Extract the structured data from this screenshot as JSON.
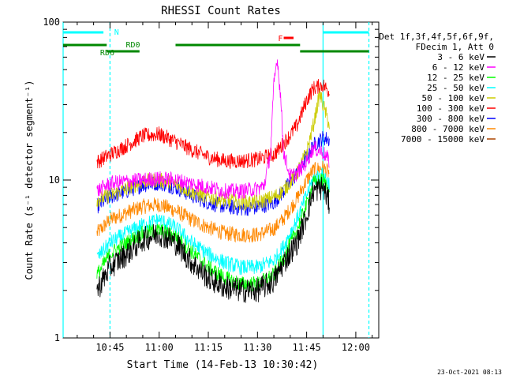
{
  "chart_data": {
    "type": "line",
    "title": "RHESSI Count Rates",
    "xlabel": "Start Time (14-Feb-13 10:30:42)",
    "ylabel": "Count Rate (s⁻¹ detector segment⁻¹)",
    "x_unit": "time (HH:MM, 14-Feb-2013)",
    "xlim": [
      "10:30:42",
      "12:07:00"
    ],
    "ylim": [
      1,
      100
    ],
    "yscale": "log",
    "x_ticks": [
      "10:45",
      "11:00",
      "11:15",
      "11:30",
      "11:45",
      "12:00"
    ],
    "y_ticks": [
      "1",
      "10",
      "100"
    ],
    "grid": false,
    "legend_position": "right",
    "legend_header": [
      "Det 1f,3f,4f,5f,6f,9f,",
      "FDecim 1, Att 0"
    ],
    "footer_timestamp": "23-Oct-2021 08:13",
    "series": [
      {
        "name": "3 - 6 keV",
        "color": "#000000",
        "x": [
          "10:41",
          "10:45",
          "10:50",
          "10:55",
          "11:00",
          "11:05",
          "11:10",
          "11:15",
          "11:20",
          "11:25",
          "11:30",
          "11:35",
          "11:38",
          "11:42",
          "11:45",
          "11:47",
          "11:50",
          "11:52"
        ],
        "y": [
          2.0,
          2.8,
          3.4,
          4.2,
          4.6,
          4.0,
          3.0,
          2.4,
          2.1,
          2.0,
          2.0,
          2.3,
          3.0,
          4.0,
          6.0,
          8.5,
          9.0,
          7.0
        ]
      },
      {
        "name": "6 - 12 keV",
        "color": "#ff00ff",
        "x": [
          "10:41",
          "10:45",
          "10:50",
          "10:55",
          "11:00",
          "11:05",
          "11:10",
          "11:15",
          "11:20",
          "11:25",
          "11:30",
          "11:32",
          "11:34",
          "11:35",
          "11:36",
          "11:37",
          "11:38",
          "11:40",
          "11:42",
          "11:45",
          "11:47",
          "11:50",
          "11:52"
        ],
        "y": [
          8.5,
          9.5,
          9.8,
          10.0,
          10.2,
          10.0,
          9.5,
          9.0,
          8.5,
          8.5,
          8.8,
          9.2,
          15,
          40,
          60,
          35,
          15,
          10.5,
          11,
          13,
          16,
          15,
          13
        ]
      },
      {
        "name": "12 - 25 keV",
        "color": "#00ff00",
        "x": [
          "10:41",
          "10:45",
          "10:50",
          "10:55",
          "11:00",
          "11:05",
          "11:10",
          "11:15",
          "11:20",
          "11:25",
          "11:30",
          "11:35",
          "11:38",
          "11:42",
          "11:45",
          "11:47",
          "11:50",
          "11:52"
        ],
        "y": [
          2.5,
          3.4,
          4.0,
          4.6,
          4.8,
          4.4,
          3.5,
          2.8,
          2.4,
          2.2,
          2.2,
          2.5,
          3.2,
          4.8,
          7.0,
          9.5,
          10.0,
          8.5
        ]
      },
      {
        "name": "25 - 50 keV",
        "color": "#00ffff",
        "x": [
          "10:41",
          "10:45",
          "10:50",
          "10:55",
          "11:00",
          "11:05",
          "11:10",
          "11:15",
          "11:20",
          "11:25",
          "11:30",
          "11:35",
          "11:38",
          "11:42",
          "11:45",
          "11:47",
          "11:50",
          "11:52"
        ],
        "y": [
          3.2,
          4.0,
          4.6,
          5.2,
          5.6,
          5.0,
          4.0,
          3.4,
          3.0,
          2.8,
          2.8,
          3.1,
          3.8,
          5.6,
          8.0,
          10.2,
          10.8,
          9.5
        ]
      },
      {
        "name": "50 - 100 keV",
        "color": "#cccc00",
        "x": [
          "10:41",
          "10:45",
          "10:50",
          "10:55",
          "11:00",
          "11:05",
          "11:10",
          "11:15",
          "11:20",
          "11:25",
          "11:30",
          "11:35",
          "11:38",
          "11:42",
          "11:45",
          "11:47",
          "11:49",
          "11:50",
          "11:52"
        ],
        "y": [
          7.5,
          8.0,
          8.8,
          9.8,
          10.0,
          9.4,
          8.4,
          7.8,
          7.4,
          7.2,
          7.2,
          7.8,
          8.6,
          11,
          15,
          22,
          35,
          30,
          22
        ]
      },
      {
        "name": "100 - 300 keV",
        "color": "#ff0000",
        "x": [
          "10:41",
          "10:45",
          "10:50",
          "10:55",
          "11:00",
          "11:05",
          "11:10",
          "11:15",
          "11:20",
          "11:25",
          "11:30",
          "11:35",
          "11:38",
          "11:42",
          "11:45",
          "11:47",
          "11:50",
          "11:52"
        ],
        "y": [
          13,
          14.5,
          16.5,
          19,
          19.5,
          17.5,
          15.5,
          14,
          13.2,
          13.2,
          13.5,
          14.5,
          17,
          22,
          32,
          38,
          40,
          36
        ]
      },
      {
        "name": "300 - 800 keV",
        "color": "#0000ff",
        "x": [
          "10:41",
          "10:45",
          "10:50",
          "10:55",
          "11:00",
          "11:05",
          "11:10",
          "11:15",
          "11:20",
          "11:25",
          "11:30",
          "11:35",
          "11:38",
          "11:42",
          "11:45",
          "11:47",
          "11:50",
          "11:52"
        ],
        "y": [
          6.8,
          7.8,
          8.5,
          9.3,
          9.6,
          9.0,
          8.0,
          7.2,
          6.8,
          6.6,
          6.7,
          7.2,
          8.5,
          11,
          14,
          16.5,
          18.5,
          18
        ]
      },
      {
        "name": "800 - 7000 keV",
        "color": "#ff8800",
        "x": [
          "10:41",
          "10:45",
          "10:50",
          "10:55",
          "11:00",
          "11:05",
          "11:10",
          "11:15",
          "11:20",
          "11:25",
          "11:30",
          "11:35",
          "11:38",
          "11:42",
          "11:45",
          "11:47",
          "11:50",
          "11:52"
        ],
        "y": [
          4.6,
          5.6,
          6.2,
          6.8,
          7.0,
          6.4,
          5.6,
          5.0,
          4.6,
          4.5,
          4.5,
          4.9,
          5.7,
          7.6,
          10,
          11.5,
          12,
          11
        ]
      },
      {
        "name": "7000 - 15000 keV",
        "color": "#aa4400",
        "x": [],
        "y": []
      }
    ],
    "annotations": [
      {
        "label": "N",
        "color": "#00ffff",
        "intervals": [
          [
            "10:30:42",
            "10:43"
          ],
          [
            "11:50",
            "12:04"
          ]
        ]
      },
      {
        "label": "RD0",
        "color": "#008800",
        "intervals": [
          [
            "10:30:42",
            "10:44"
          ],
          [
            "11:05",
            "11:43"
          ]
        ]
      },
      {
        "label": "RD6",
        "color": "#008800",
        "intervals": [
          [
            "10:44",
            "10:54"
          ],
          [
            "11:43",
            "12:04"
          ]
        ]
      },
      {
        "label": "F",
        "color": "#ff0000",
        "intervals": [
          [
            "11:38",
            "11:41"
          ]
        ]
      }
    ],
    "vertical_markers": [
      {
        "time": "10:30:42",
        "color": "#00ffff",
        "style": "solid"
      },
      {
        "time": "10:45",
        "color": "#00ffff",
        "style": "dashed"
      },
      {
        "time": "11:50",
        "color": "#00ffff",
        "style": "solid"
      },
      {
        "time": "12:04",
        "color": "#00ffff",
        "style": "dashed"
      }
    ]
  }
}
